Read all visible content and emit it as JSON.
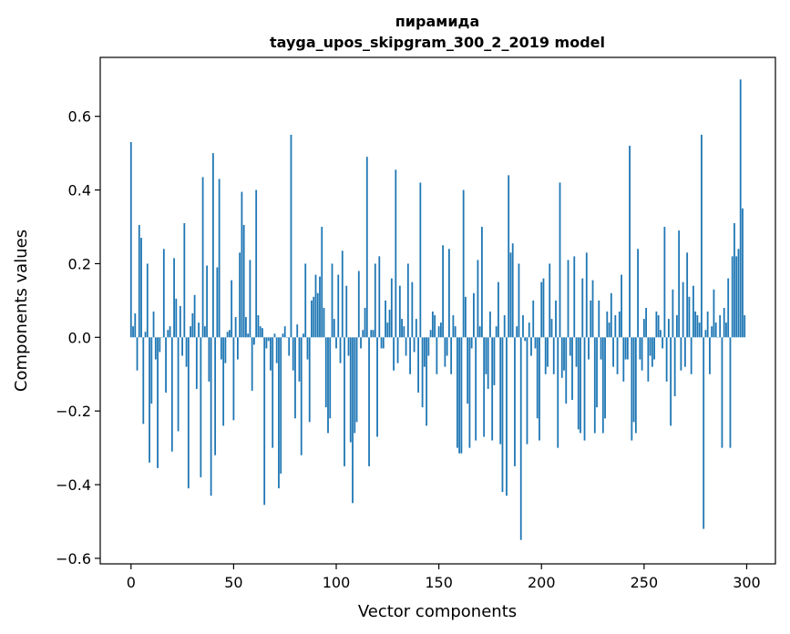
{
  "chart_data": {
    "type": "bar",
    "title": "пирамида",
    "subtitle": "tayga_upos_skipgram_300_2_2019 model",
    "xlabel": "Vector components",
    "ylabel": "Components values",
    "xlim": [
      -15,
      314
    ],
    "ylim": [
      -0.615,
      0.76
    ],
    "x_ticks": [
      0,
      50,
      100,
      150,
      200,
      250,
      300
    ],
    "x_tick_labels": [
      "0",
      "50",
      "100",
      "150",
      "200",
      "250",
      "300"
    ],
    "y_ticks": [
      -0.6,
      -0.4,
      -0.2,
      0.0,
      0.2,
      0.4,
      0.6
    ],
    "y_tick_labels": [
      "−0.6",
      "−0.4",
      "−0.2",
      "0.0",
      "0.2",
      "0.4",
      "0.6"
    ],
    "bar_color": "#1f77b4",
    "grid": false,
    "x": "0..299 (component index)",
    "values": [
      0.53,
      0.03,
      0.065,
      -0.09,
      0.305,
      0.27,
      -0.235,
      0.015,
      0.2,
      -0.34,
      -0.18,
      0.07,
      -0.06,
      -0.355,
      -0.04,
      0.0,
      0.24,
      -0.15,
      0.02,
      0.03,
      -0.31,
      0.215,
      0.105,
      -0.255,
      0.085,
      -0.05,
      0.31,
      -0.08,
      -0.41,
      0.03,
      0.065,
      0.115,
      -0.14,
      0.04,
      -0.38,
      0.435,
      0.03,
      0.195,
      -0.12,
      -0.43,
      0.5,
      -0.32,
      0.19,
      0.43,
      -0.06,
      -0.24,
      -0.07,
      0.015,
      0.02,
      0.155,
      -0.225,
      0.055,
      -0.06,
      0.23,
      0.395,
      0.305,
      0.055,
      0.01,
      0.21,
      -0.145,
      -0.02,
      0.4,
      0.06,
      0.03,
      0.025,
      -0.455,
      -0.03,
      -0.01,
      -0.09,
      -0.3,
      0.01,
      -0.07,
      -0.41,
      -0.37,
      0.01,
      0.03,
      0.0,
      -0.05,
      0.55,
      -0.09,
      -0.22,
      0.035,
      -0.12,
      -0.32,
      0.01,
      0.2,
      -0.06,
      -0.23,
      0.1,
      0.11,
      0.17,
      0.12,
      0.165,
      0.3,
      0.08,
      -0.19,
      -0.26,
      -0.22,
      0.2,
      0.05,
      -0.03,
      0.17,
      -0.07,
      0.235,
      -0.35,
      0.14,
      -0.05,
      -0.285,
      -0.45,
      -0.26,
      -0.23,
      0.18,
      -0.03,
      0.02,
      0.08,
      0.49,
      -0.35,
      0.02,
      0.02,
      0.2,
      -0.27,
      0.22,
      -0.03,
      -0.03,
      0.1,
      0.04,
      0.075,
      0.16,
      -0.09,
      0.455,
      -0.07,
      0.14,
      0.05,
      0.03,
      -0.05,
      0.2,
      -0.1,
      0.15,
      -0.04,
      0.05,
      -0.15,
      0.42,
      -0.19,
      -0.08,
      -0.24,
      -0.05,
      0.02,
      0.07,
      0.06,
      -0.1,
      0.03,
      0.04,
      0.25,
      -0.08,
      -0.05,
      0.24,
      -0.1,
      0.06,
      0.03,
      -0.3,
      -0.315,
      -0.315,
      0.4,
      0.11,
      -0.18,
      -0.3,
      -0.03,
      0.12,
      -0.28,
      0.21,
      0.03,
      0.3,
      -0.27,
      -0.1,
      -0.14,
      0.07,
      -0.28,
      -0.13,
      0.03,
      0.15,
      -0.29,
      -0.42,
      0.06,
      -0.43,
      0.44,
      0.23,
      0.255,
      -0.35,
      0.03,
      0.2,
      -0.55,
      0.06,
      -0.01,
      -0.29,
      0.04,
      -0.05,
      0.1,
      -0.03,
      -0.22,
      -0.28,
      0.15,
      0.16,
      -0.1,
      -0.08,
      0.2,
      0.05,
      -0.1,
      0.1,
      -0.3,
      0.42,
      -0.11,
      -0.09,
      -0.18,
      0.21,
      -0.05,
      -0.17,
      0.22,
      -0.08,
      -0.25,
      -0.26,
      0.16,
      -0.28,
      0.23,
      -0.06,
      0.1,
      0.155,
      -0.26,
      -0.19,
      0.1,
      -0.06,
      -0.26,
      -0.22,
      0.07,
      0.04,
      0.12,
      -0.08,
      0.06,
      -0.1,
      0.07,
      0.17,
      -0.12,
      -0.06,
      -0.06,
      0.52,
      -0.28,
      -0.23,
      -0.26,
      0.24,
      -0.06,
      -0.09,
      0.05,
      0.08,
      -0.12,
      -0.05,
      -0.08,
      -0.06,
      0.07,
      0.06,
      0.02,
      -0.03,
      0.3,
      -0.12,
      0.05,
      -0.24,
      0.13,
      -0.16,
      0.06,
      0.29,
      -0.09,
      0.15,
      -0.08,
      0.23,
      0.11,
      -0.1,
      0.14,
      0.07,
      0.06,
      0.04,
      0.55,
      -0.52,
      0.02,
      0.07,
      -0.1,
      0.03,
      0.13,
      0.04,
      0.0,
      0.06,
      -0.3,
      0.08,
      0.04,
      0.16,
      -0.3,
      0.22,
      0.31,
      0.22,
      0.24,
      0.7,
      0.35,
      0.06
    ]
  }
}
